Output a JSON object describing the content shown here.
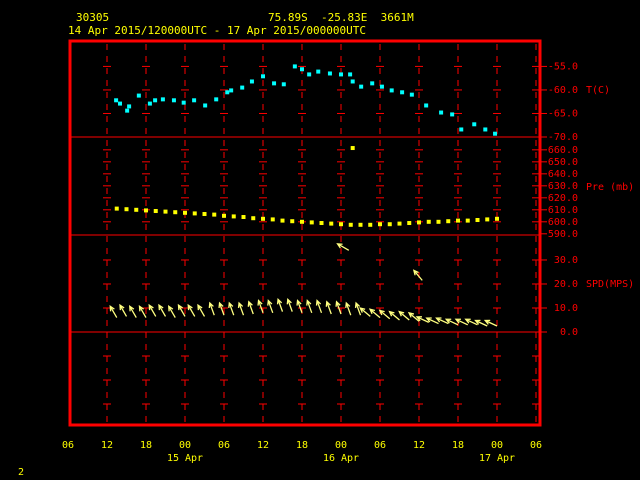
{
  "header": {
    "station": "30305",
    "location": "75.89S  -25.83E  3661M",
    "period": "14 Apr 2015/120000UTC - 17 Apr 2015/000000UTC"
  },
  "x_axis": {
    "xlim": [
      6,
      78
    ],
    "xticks": [
      {
        "value": 6,
        "label": "06"
      },
      12,
      18,
      {
        "value": 24,
        "label": "00"
      },
      {
        "value": 30,
        "label": "06"
      },
      {
        "value": 36,
        "label": "12"
      },
      {
        "value": 42,
        "label": "18"
      },
      {
        "value": 48,
        "label": "00"
      },
      {
        "value": 54,
        "label": "06"
      },
      {
        "value": 60,
        "label": "12"
      },
      {
        "value": 66,
        "label": "18"
      },
      {
        "value": 72,
        "label": "00"
      },
      {
        "value": 78,
        "label": "06"
      }
    ],
    "date_labels": [
      {
        "value": 24,
        "label": "15 Apr"
      },
      {
        "value": 48,
        "label": "16 Apr"
      },
      {
        "value": 72,
        "label": "17 Apr"
      }
    ]
  },
  "chart_data": [
    {
      "type": "scatter",
      "axis_label": "T(C)",
      "color": "#00ffff",
      "x": [
        13.4,
        14,
        15.1,
        15.4,
        16.9,
        18.6,
        19.4,
        20.6,
        22.3,
        23.8,
        25.4,
        27.1,
        28.8,
        30.5,
        31.1,
        32.8,
        34.3,
        36,
        37.7,
        39.2,
        40.9,
        42,
        43.1,
        44.5,
        46.3,
        48,
        49.4,
        49.8,
        51.1,
        52.8,
        54.3,
        55.8,
        57.4,
        58.9,
        61.1,
        63.4,
        65.1,
        66.5,
        68.5,
        70.2,
        71.7
      ],
      "values": [
        -62.2,
        -62.9,
        -64.4,
        -63.5,
        -61.2,
        -62.9,
        -62.2,
        -62.0,
        -62.2,
        -62.7,
        -62.2,
        -63.3,
        -62.0,
        -60.5,
        -60.1,
        -59.5,
        -58.2,
        -57.1,
        -58.6,
        -58.8,
        -55.0,
        -55.6,
        -56.7,
        -56.1,
        -56.5,
        -56.7,
        -56.7,
        -58.2,
        -59.3,
        -58.6,
        -59.3,
        -60.1,
        -60.5,
        -61.0,
        -63.3,
        -64.8,
        -65.2,
        -68.4,
        -67.3,
        -68.4,
        -69.3
      ],
      "ylim": [
        -70,
        -49.6
      ],
      "yticks": [
        {
          "value": -55,
          "label": "-55.0"
        },
        {
          "value": -60,
          "label": "-60.0"
        },
        {
          "value": -65,
          "label": "-65.0"
        },
        {
          "value": -70,
          "label": "-70.0"
        }
      ]
    },
    {
      "type": "scatter",
      "axis_label": "Pre (mb)",
      "color": "#ffff00",
      "x": [
        13.5,
        15,
        16.5,
        18,
        19.5,
        21,
        22.5,
        24,
        25.5,
        27,
        28.5,
        30,
        31.5,
        33,
        34.5,
        36,
        37.5,
        39,
        40.5,
        42,
        43.5,
        45,
        46.5,
        48,
        49.5,
        49.8,
        51,
        52.5,
        54,
        55.5,
        57,
        58.5,
        60,
        61.5,
        63,
        64.5,
        66,
        67.5,
        69,
        70.5,
        72
      ],
      "values": [
        611,
        610.5,
        610,
        609.5,
        609,
        608.5,
        608,
        607.5,
        607,
        606.5,
        606,
        605,
        604.5,
        604,
        603,
        602.5,
        602,
        601,
        600.5,
        600,
        599.5,
        599,
        598.5,
        598,
        597.5,
        661.5,
        597.5,
        597.5,
        598,
        598,
        598.5,
        599,
        599.5,
        600,
        600,
        600.5,
        601,
        601,
        601.5,
        602,
        602.5
      ],
      "ylim": [
        589,
        670.7
      ],
      "yticks": [
        {
          "value": 660,
          "label": "660.0"
        },
        {
          "value": 650,
          "label": "650.0"
        },
        {
          "value": 640,
          "label": "640.0"
        },
        {
          "value": 630,
          "label": "630.0"
        },
        {
          "value": 620,
          "label": "620.0"
        },
        {
          "value": 610,
          "label": "610.0"
        },
        {
          "value": 600,
          "label": "600.0"
        },
        {
          "value": 590,
          "label": "590.0"
        }
      ]
    },
    {
      "type": "wind",
      "axis_label": "SPD(MPS)",
      "color": "#ffff80",
      "x": [
        13.5,
        15,
        16.5,
        18,
        19.5,
        21,
        22.5,
        24,
        25.5,
        27,
        28.5,
        30,
        31.5,
        33,
        34.5,
        36,
        37.5,
        39,
        40.5,
        42,
        43.5,
        45,
        46.5,
        48,
        49.2,
        49.5,
        51,
        52.5,
        54,
        55.5,
        57,
        58.5,
        60,
        60.5,
        61.5,
        63,
        64.5,
        66,
        67.5,
        69,
        70.5,
        72
      ],
      "values": [
        6,
        6.5,
        6,
        6,
        6.5,
        6.5,
        6,
        6.5,
        6.5,
        6.5,
        7,
        7,
        7,
        7,
        7.5,
        8,
        8,
        8.5,
        8.5,
        8,
        8,
        8,
        7.5,
        7.5,
        34,
        7,
        7,
        6.5,
        6,
        5.5,
        5,
        5,
        4.5,
        21.5,
        4,
        3.5,
        3.5,
        3,
        3,
        3,
        2.5,
        2.5
      ],
      "direction": [
        330,
        330,
        330,
        330,
        330,
        330,
        330,
        330,
        330,
        330,
        340,
        340,
        340,
        340,
        340,
        340,
        340,
        340,
        340,
        340,
        340,
        340,
        340,
        340,
        300,
        340,
        340,
        310,
        310,
        310,
        310,
        310,
        310,
        320,
        295,
        295,
        295,
        295,
        295,
        295,
        295,
        295
      ],
      "ylim": [
        0,
        40.4
      ],
      "yticks": [
        {
          "value": 30,
          "label": "30.0"
        },
        {
          "value": 20,
          "label": "20.0"
        },
        {
          "value": 10,
          "label": "10.0"
        },
        {
          "value": 0,
          "label": "0.0"
        }
      ]
    }
  ],
  "page_number": "2"
}
